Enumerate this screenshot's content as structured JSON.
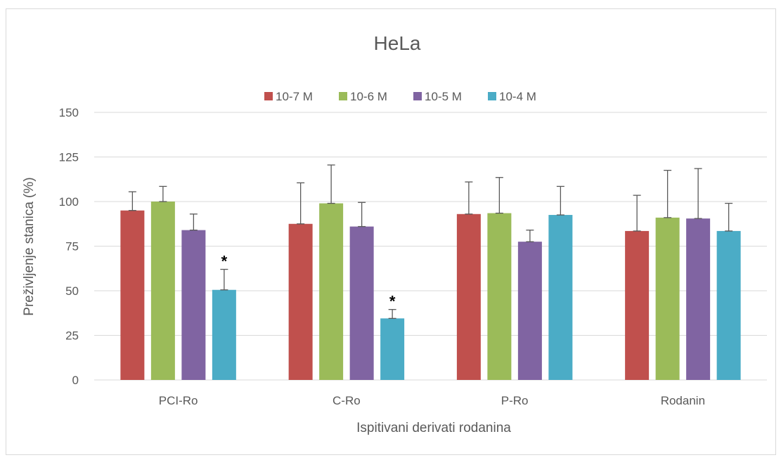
{
  "chart_data": {
    "type": "bar",
    "title": "HeLa",
    "xlabel": "Ispitivani derivati rodanina",
    "ylabel": "Preživljenje stanica (%)",
    "ylim": [
      0,
      150
    ],
    "yticks": [
      0,
      25,
      50,
      75,
      100,
      125,
      150
    ],
    "grid": true,
    "legend_position": "top",
    "categories": [
      "PCI-Ro",
      "C-Ro",
      "P-Ro",
      "Rodanin"
    ],
    "series": [
      {
        "name": "10-7 M",
        "color": "#c0504d",
        "values": [
          95,
          87.5,
          93,
          83.5
        ],
        "errors": [
          10.5,
          23,
          18,
          20
        ]
      },
      {
        "name": "10-6 M",
        "color": "#9bbb59",
        "values": [
          100,
          99,
          93.5,
          91
        ],
        "errors": [
          8.5,
          21.5,
          20,
          26.5
        ]
      },
      {
        "name": "10-5 M",
        "color": "#8064a2",
        "values": [
          84,
          86,
          77.5,
          90.5
        ],
        "errors": [
          9,
          13.5,
          6.5,
          28
        ]
      },
      {
        "name": "10-4 M",
        "color": "#4bacc6",
        "values": [
          50.5,
          34.5,
          92.5,
          83.5
        ],
        "errors": [
          11.5,
          5,
          16,
          15.5
        ]
      }
    ],
    "annotations": [
      {
        "category": "PCI-Ro",
        "series": "10-4 M",
        "text": "*"
      },
      {
        "category": "C-Ro",
        "series": "10-4 M",
        "text": "*"
      }
    ]
  }
}
